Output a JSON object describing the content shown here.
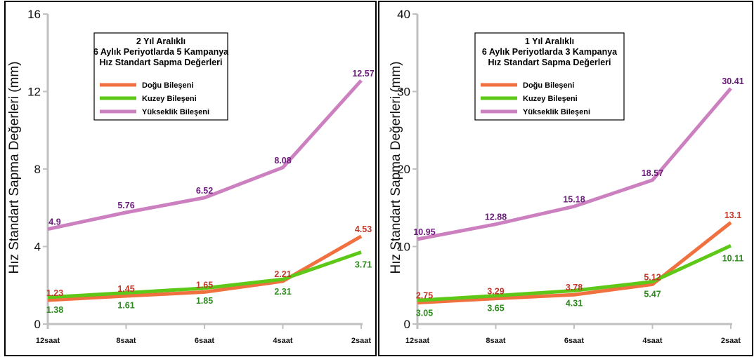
{
  "chart_data": [
    {
      "type": "line",
      "title_lines": [
        "2 Yıl Aralıklı",
        "6 Aylık Periyotlarda 5 Kampanya",
        "Hız Standart Sapma Değerleri"
      ],
      "ylabel": "Hız Standart Sapma Değerleri (mm)",
      "xlabel": "",
      "categories": [
        "12saat",
        "8saat",
        "6saat",
        "4saat",
        "2saat"
      ],
      "ylim": [
        0,
        16
      ],
      "yticks": [
        "0",
        "4",
        "8",
        "12",
        "16"
      ],
      "grid": false,
      "legend_position": "top-left",
      "series": [
        {
          "name": "Doğu Bileşeni",
          "color": "#f07040",
          "label_color": "#c0392b",
          "values": [
            1.23,
            1.45,
            1.65,
            2.21,
            4.53
          ],
          "labels": [
            "1.23",
            "1.45",
            "1.65",
            "2.21",
            "4.53"
          ],
          "label_side": "above"
        },
        {
          "name": "Kuzey Bileşeni",
          "color": "#5ec818",
          "label_color": "#2e8b1e",
          "values": [
            1.38,
            1.61,
            1.85,
            2.31,
            3.71
          ],
          "labels": [
            "1.38",
            "1.61",
            "1.85",
            "2.31",
            "3.71"
          ],
          "label_side": "below"
        },
        {
          "name": "Yükseklik Bileşeni",
          "color": "#cc80c0",
          "label_color": "#6a1b7a",
          "values": [
            4.9,
            5.76,
            6.52,
            8.08,
            12.57
          ],
          "labels": [
            "4.9",
            "5.76",
            "6.52",
            "8.08",
            "12.57"
          ],
          "label_side": "above"
        }
      ]
    },
    {
      "type": "line",
      "title_lines": [
        "1 Yıl Aralıklı",
        "6 Aylık Periyotlarda 3 Kampanya",
        "Hız Standart Sapma Değerleri"
      ],
      "ylabel": "Hız Standart Sapma Değerleri (mm)",
      "xlabel": "",
      "categories": [
        "12saat",
        "8saat",
        "6saat",
        "4saat",
        "2saat"
      ],
      "ylim": [
        0,
        40
      ],
      "yticks": [
        "0",
        "10",
        "20",
        "30",
        "40"
      ],
      "grid": false,
      "legend_position": "top-left",
      "series": [
        {
          "name": "Doğu Bileşeni",
          "color": "#f07040",
          "label_color": "#c0392b",
          "values": [
            2.75,
            3.29,
            3.78,
            5.12,
            13.1
          ],
          "labels": [
            "2.75",
            "3.29",
            "3.78",
            "5.12",
            "13.1"
          ],
          "label_side": "above"
        },
        {
          "name": "Kuzey Bileşeni",
          "color": "#5ec818",
          "label_color": "#2e8b1e",
          "values": [
            3.05,
            3.65,
            4.31,
            5.47,
            10.11
          ],
          "labels": [
            "3.05",
            "3.65",
            "4.31",
            "5.47",
            "10.11"
          ],
          "label_side": "below"
        },
        {
          "name": "Yükseklik Bileşeni",
          "color": "#cc80c0",
          "label_color": "#6a1b7a",
          "values": [
            10.95,
            12.88,
            15.18,
            18.57,
            30.41
          ],
          "labels": [
            "10.95",
            "12.88",
            "15.18",
            "18.57",
            "30.41"
          ],
          "label_side": "above"
        }
      ]
    }
  ]
}
